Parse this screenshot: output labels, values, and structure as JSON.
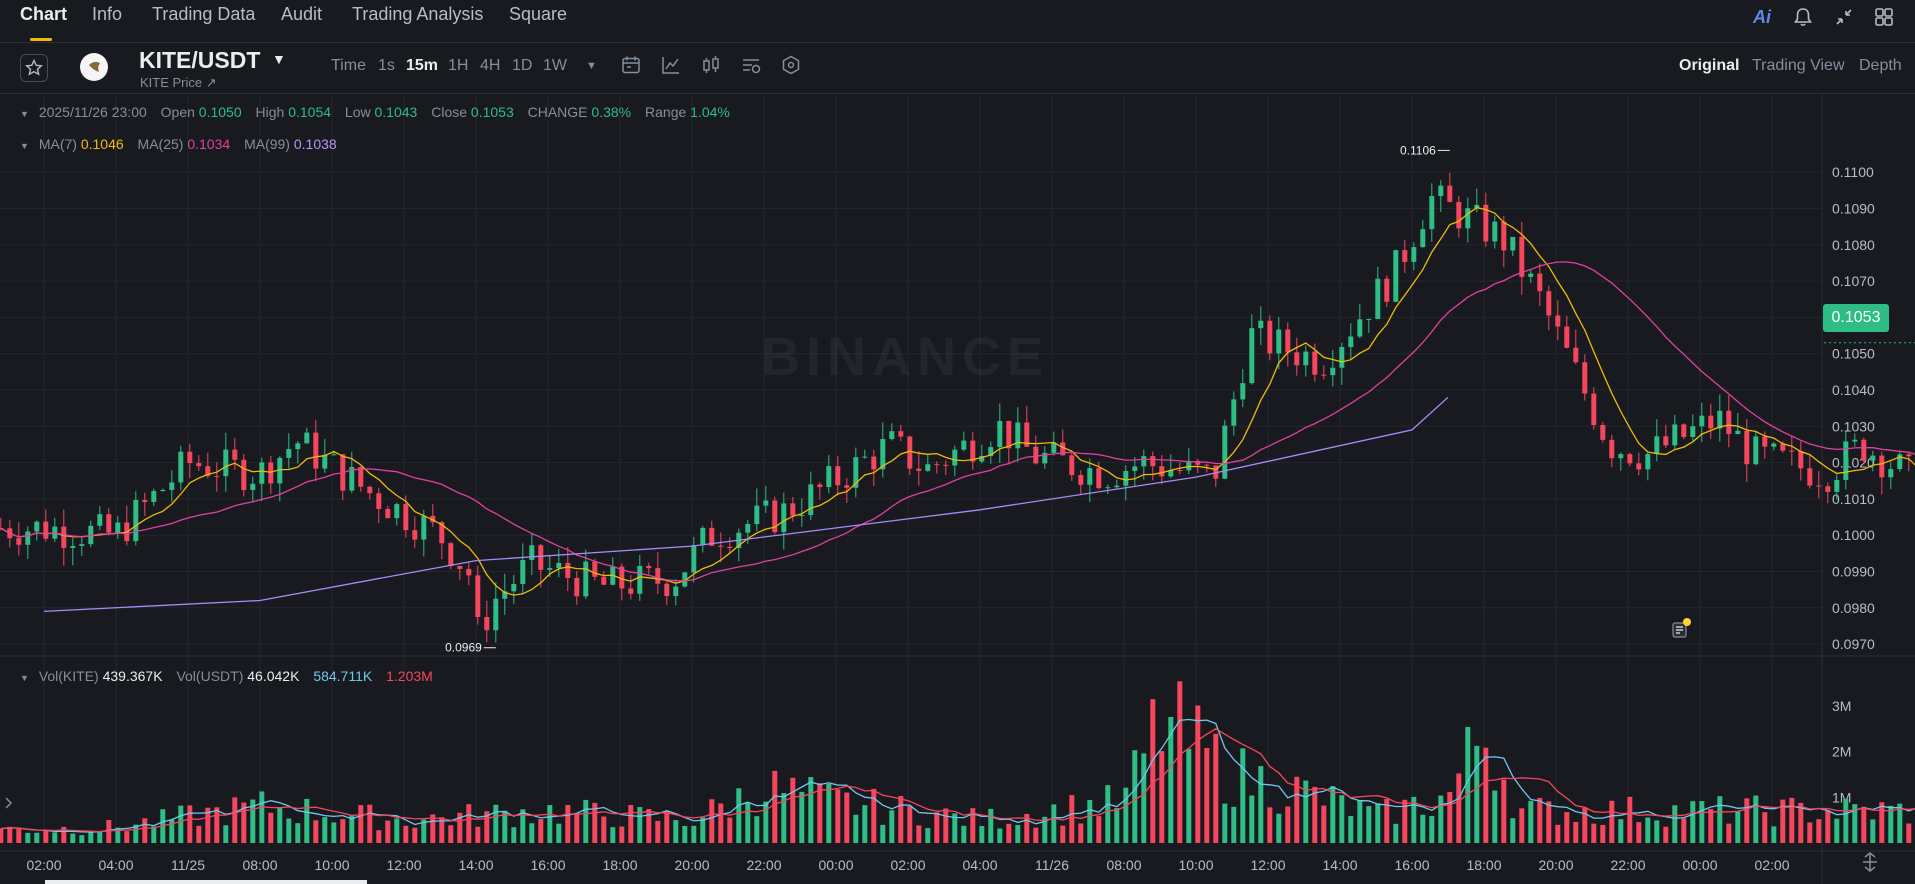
{
  "tabs": [
    {
      "label": "Chart",
      "active": true
    },
    {
      "label": "Info"
    },
    {
      "label": "Trading Data"
    },
    {
      "label": "Audit"
    },
    {
      "label": "Trading Analysis"
    },
    {
      "label": "Square"
    }
  ],
  "top_icons": [
    "ai-icon",
    "bell-icon",
    "collapse-icon",
    "grid-icon"
  ],
  "ai_label": "Ai",
  "symbol": {
    "pair": "KITE/USDT",
    "subtitle": "KITE Price ↗"
  },
  "intervals": {
    "time_label": "Time",
    "items": [
      "1s",
      "15m",
      "1H",
      "4H",
      "1D",
      "1W"
    ],
    "selected": "15m"
  },
  "toolbar_icons": [
    "calendar-icon",
    "indicator-icon",
    "candle-type-icon",
    "settings-icon",
    "hexagon-icon"
  ],
  "views": {
    "items": [
      "Original",
      "Trading View",
      "Depth"
    ],
    "selected": "Original"
  },
  "ohlc": {
    "date": "2025/11/26 23:00",
    "open_label": "Open",
    "open": "0.1050",
    "high_label": "High",
    "high": "0.1054",
    "low_label": "Low",
    "low": "0.1043",
    "close_label": "Close",
    "close": "0.1053",
    "change_label": "CHANGE",
    "change": "0.38%",
    "range_label": "Range",
    "range": "1.04%"
  },
  "ma": {
    "ma7_label": "MA(7)",
    "ma7": "0.1046",
    "ma25_label": "MA(25)",
    "ma25": "0.1034",
    "ma99_label": "MA(99)",
    "ma99": "0.1038"
  },
  "vol": {
    "kite_label": "Vol(KITE)",
    "kite": "439.367K",
    "usdt_label": "Vol(USDT)",
    "usdt": "46.042K",
    "ma1": "584.711K",
    "ma2": "1.203M"
  },
  "last_price": "0.1053",
  "watermark": "BINANCE",
  "colors": {
    "up": "#2ebd85",
    "down": "#f6465d",
    "ma7": "#f0b90b",
    "ma25": "#e040a0",
    "ma99": "#a78bfa",
    "vol_ma1": "#6fc7ed",
    "vol_ma2": "#f6465d",
    "price_tag": "#2ebd85"
  },
  "chart_data": {
    "type": "candlestick",
    "x_ticks": [
      "02:00",
      "04:00",
      "11/25",
      "08:00",
      "10:00",
      "12:00",
      "14:00",
      "16:00",
      "18:00",
      "20:00",
      "22:00",
      "00:00",
      "02:00",
      "04:00",
      "11/26",
      "08:00",
      "10:00",
      "12:00",
      "14:00",
      "16:00",
      "18:00",
      "20:00",
      "22:00",
      "00:00",
      "02:00"
    ],
    "y_ticks": [
      "0.1100",
      "0.1090",
      "0.1080",
      "0.1070",
      "0.1060",
      "0.1050",
      "0.1040",
      "0.1030",
      "0.1020",
      "0.1010",
      "0.1000",
      "0.0990",
      "0.0980",
      "0.0970"
    ],
    "y_range": [
      0.0967,
      0.1113
    ],
    "vol_ticks": [
      "3M",
      "2M",
      "1M"
    ],
    "vol_range": [
      0,
      4000000
    ],
    "high_marker": "0.1106",
    "low_marker": "0.0969",
    "anchors": [
      {
        "time": "02:00",
        "close": 0.1002
      },
      {
        "time": "04:00",
        "close": 0.1
      },
      {
        "time": "11/25",
        "close": 0.102
      },
      {
        "time": "08:00",
        "close": 0.1017
      },
      {
        "time": "09:00",
        "close": 0.1026
      },
      {
        "time": "10:00",
        "close": 0.1012
      },
      {
        "time": "12:00",
        "close": 0.1
      },
      {
        "time": "13:00",
        "close": 0.0987
      },
      {
        "time": "14:00",
        "close": 0.0972
      },
      {
        "time": "14:30",
        "close": 0.0982
      },
      {
        "time": "15:00",
        "close": 0.0992
      },
      {
        "time": "16:00",
        "close": 0.0986
      },
      {
        "time": "18:00",
        "close": 0.0988
      },
      {
        "time": "19:00",
        "close": 0.1
      },
      {
        "time": "20:00",
        "close": 0.1006
      },
      {
        "time": "21:00",
        "close": 0.1012
      },
      {
        "time": "22:00",
        "close": 0.1025
      },
      {
        "time": "23:00",
        "close": 0.1018
      },
      {
        "time": "00:00",
        "close": 0.103
      },
      {
        "time": "01:00",
        "close": 0.1022
      },
      {
        "time": "02:00",
        "close": 0.1017
      },
      {
        "time": "03:00",
        "close": 0.102
      },
      {
        "time": "04:00",
        "close": 0.1016
      },
      {
        "time": "05:00",
        "close": 0.1055
      },
      {
        "time": "06:00",
        "close": 0.1048
      },
      {
        "time": "08:00",
        "close": 0.1072
      },
      {
        "time": "09:00",
        "close": 0.1093
      },
      {
        "time": "10:00",
        "close": 0.1082
      },
      {
        "time": "11:00",
        "close": 0.1066
      },
      {
        "time": "12:00",
        "close": 0.1025
      },
      {
        "time": "13:00",
        "close": 0.1022
      },
      {
        "time": "14:00",
        "close": 0.1032
      },
      {
        "time": "15:00",
        "close": 0.1022
      },
      {
        "time": "16:00",
        "close": 0.1017
      },
      {
        "time": "17:00",
        "close": 0.1025
      },
      {
        "time": "18:00",
        "close": 0.1012
      },
      {
        "time": "19:00",
        "close": 0.1018
      },
      {
        "time": "20:00",
        "close": 0.1055
      },
      {
        "time": "21:00",
        "close": 0.1046
      },
      {
        "time": "22:00",
        "close": 0.1048
      },
      {
        "time": "23:00",
        "close": 0.1053
      }
    ],
    "volume_anchors": [
      {
        "time": "02:00",
        "volume": 300000
      },
      {
        "time": "04:00",
        "volume": 350000
      },
      {
        "time": "08:00",
        "volume": 800000
      },
      {
        "time": "12:00",
        "volume": 500000
      },
      {
        "time": "16:00",
        "volume": 700000
      },
      {
        "time": "20:00",
        "volume": 500000
      },
      {
        "time": "22:00",
        "volume": 1200000
      },
      {
        "time": "00:00",
        "volume": 900000
      },
      {
        "time": "04:00",
        "volume": 500000
      },
      {
        "time": "08:00",
        "volume": 900000
      },
      {
        "time": "09:00",
        "volume": 2700000
      },
      {
        "time": "10:00",
        "volume": 1500000
      },
      {
        "time": "12:00",
        "volume": 1100000
      },
      {
        "time": "16:00",
        "volume": 600000
      },
      {
        "time": "20:00",
        "volume": 1000000
      },
      {
        "time": "21:00",
        "volume": 2500000
      },
      {
        "time": "23:00",
        "volume": 700000
      }
    ],
    "ma99_anchors": [
      {
        "time": "02:00",
        "value": 0.0979
      },
      {
        "time": "08:00",
        "value": 0.0982
      },
      {
        "time": "14:00",
        "value": 0.0993
      },
      {
        "time": "20:00",
        "value": 0.0997
      },
      {
        "time": "04:00",
        "value": 0.1007
      },
      {
        "time": "10:00",
        "value": 0.1016
      },
      {
        "time": "16:00",
        "value": 0.1029
      },
      {
        "time": "23:00",
        "value": 0.1038
      }
    ]
  }
}
